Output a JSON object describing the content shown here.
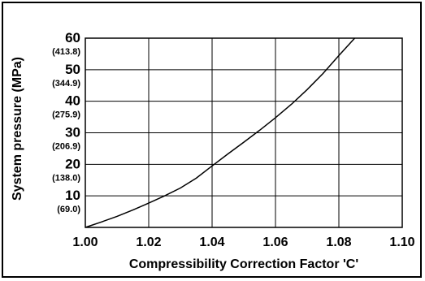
{
  "chart_data": {
    "type": "line",
    "xlabel": "Compressibility Correction Factor 'C'",
    "ylabel": "System pressure (MPa)",
    "xlim": [
      1.0,
      1.1
    ],
    "ylim": [
      0,
      60
    ],
    "x_ticks": [
      "1.00",
      "1.02",
      "1.04",
      "1.06",
      "1.08",
      "1.10"
    ],
    "y_ticks": [
      {
        "value": 10,
        "label": "10",
        "sublabel": "(69.0)"
      },
      {
        "value": 20,
        "label": "20",
        "sublabel": "(138.0)"
      },
      {
        "value": 30,
        "label": "30",
        "sublabel": "(206.9)"
      },
      {
        "value": 40,
        "label": "40",
        "sublabel": "(275.9)"
      },
      {
        "value": 50,
        "label": "50",
        "sublabel": "(344.9)"
      },
      {
        "value": 60,
        "label": "60",
        "sublabel": "(413.8)"
      }
    ],
    "grid": true,
    "series": [
      {
        "color": "#000000",
        "x": [
          1.0,
          1.005,
          1.01,
          1.015,
          1.02,
          1.025,
          1.03,
          1.035,
          1.04,
          1.045,
          1.05,
          1.055,
          1.06,
          1.065,
          1.07,
          1.075,
          1.08,
          1.085
        ],
        "y": [
          0,
          1.7,
          3.5,
          5.5,
          7.7,
          10.0,
          12.5,
          15.6,
          19.5,
          23.3,
          27.0,
          30.8,
          34.8,
          39.0,
          43.7,
          48.8,
          54.5,
          60.5
        ]
      }
    ]
  }
}
